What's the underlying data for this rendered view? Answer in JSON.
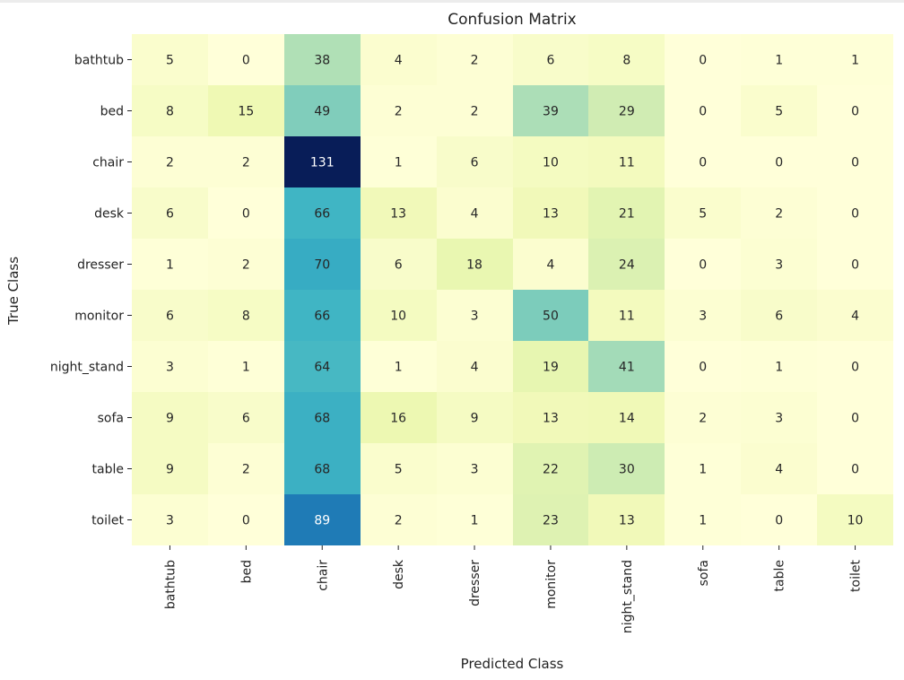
{
  "chart_data": {
    "type": "heatmap",
    "title": "Confusion Matrix",
    "xlabel": "Predicted Class",
    "ylabel": "True Class",
    "x_categories": [
      "bathtub",
      "bed",
      "chair",
      "desk",
      "dresser",
      "monitor",
      "night_stand",
      "sofa",
      "table",
      "toilet"
    ],
    "y_categories": [
      "bathtub",
      "bed",
      "chair",
      "desk",
      "dresser",
      "monitor",
      "night_stand",
      "sofa",
      "table",
      "toilet"
    ],
    "values": [
      [
        5,
        0,
        38,
        4,
        2,
        6,
        8,
        0,
        1,
        1
      ],
      [
        8,
        15,
        49,
        2,
        2,
        39,
        29,
        0,
        5,
        0
      ],
      [
        2,
        2,
        131,
        1,
        6,
        10,
        11,
        0,
        0,
        0
      ],
      [
        6,
        0,
        66,
        13,
        4,
        13,
        21,
        5,
        2,
        0
      ],
      [
        1,
        2,
        70,
        6,
        18,
        4,
        24,
        0,
        3,
        0
      ],
      [
        6,
        8,
        66,
        10,
        3,
        50,
        11,
        3,
        6,
        4
      ],
      [
        3,
        1,
        64,
        1,
        4,
        19,
        41,
        0,
        1,
        0
      ],
      [
        9,
        6,
        68,
        16,
        9,
        13,
        14,
        2,
        3,
        0
      ],
      [
        9,
        2,
        68,
        5,
        3,
        22,
        30,
        1,
        4,
        0
      ],
      [
        3,
        0,
        89,
        2,
        1,
        23,
        13,
        1,
        0,
        10
      ]
    ],
    "colormap": "YlGnBu",
    "value_range": [
      0,
      131
    ],
    "annotations": true,
    "colorbar": false
  }
}
